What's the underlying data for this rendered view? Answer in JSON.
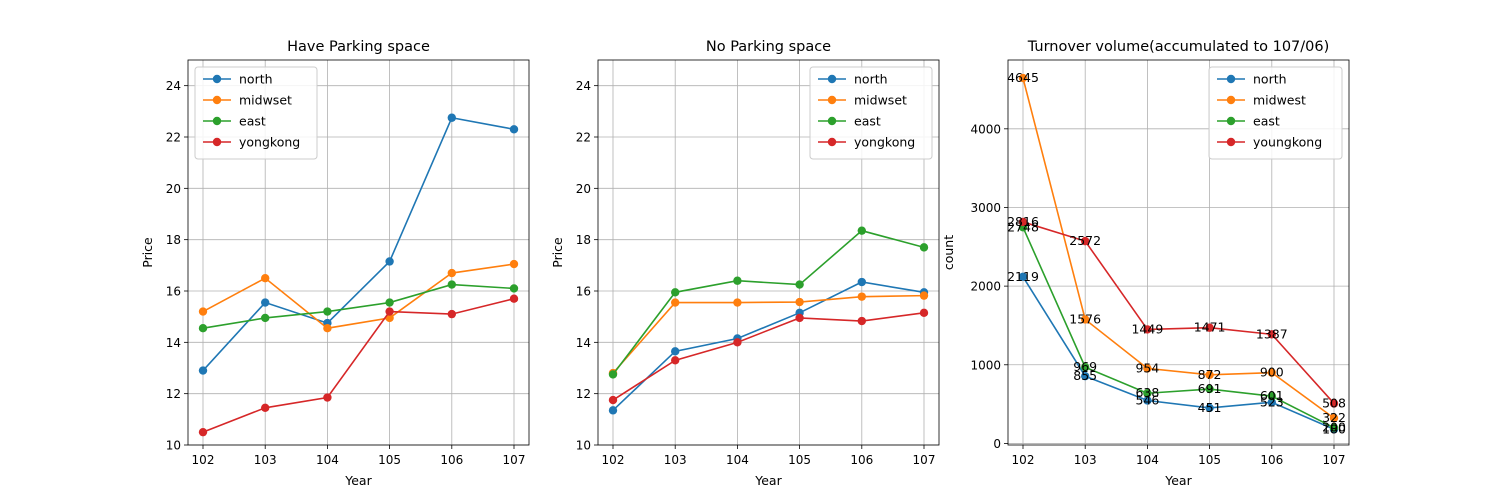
{
  "chart_data": [
    {
      "type": "line",
      "title": "Have Parking space",
      "xlabel": "Year",
      "ylabel": "Price",
      "x": [
        "102",
        "103",
        "104",
        "105",
        "106",
        "107"
      ],
      "ylim": [
        10,
        25
      ],
      "yticks": [
        10,
        12,
        14,
        16,
        18,
        20,
        22,
        24
      ],
      "grid": true,
      "legend_position": "top-left",
      "series": [
        {
          "name": "north",
          "color": "#1f77b4",
          "values": [
            12.9,
            15.55,
            14.75,
            17.15,
            22.75,
            22.3
          ]
        },
        {
          "name": "midwset",
          "color": "#ff7f0e",
          "values": [
            15.2,
            16.5,
            14.55,
            14.95,
            16.7,
            17.05
          ]
        },
        {
          "name": "east",
          "color": "#2ca02c",
          "values": [
            14.55,
            14.95,
            15.2,
            15.55,
            16.25,
            16.1
          ]
        },
        {
          "name": "yongkong",
          "color": "#d62728",
          "values": [
            10.5,
            11.45,
            11.85,
            15.2,
            15.1,
            15.7
          ]
        }
      ]
    },
    {
      "type": "line",
      "title": "No Parking space",
      "xlabel": "Year",
      "ylabel": "Price",
      "x": [
        "102",
        "103",
        "104",
        "105",
        "106",
        "107"
      ],
      "ylim": [
        10,
        25
      ],
      "yticks": [
        10,
        12,
        14,
        16,
        18,
        20,
        22,
        24
      ],
      "grid": true,
      "legend_position": "top-right",
      "series": [
        {
          "name": "north",
          "color": "#1f77b4",
          "values": [
            11.35,
            13.65,
            14.15,
            15.15,
            16.35,
            15.95
          ]
        },
        {
          "name": "midwset",
          "color": "#ff7f0e",
          "values": [
            12.8,
            15.55,
            15.55,
            15.57,
            15.78,
            15.82
          ]
        },
        {
          "name": "east",
          "color": "#2ca02c",
          "values": [
            12.75,
            15.95,
            16.4,
            16.25,
            18.35,
            17.7
          ]
        },
        {
          "name": "yongkong",
          "color": "#d62728",
          "values": [
            11.75,
            13.3,
            14.0,
            14.95,
            14.83,
            15.15
          ]
        }
      ]
    },
    {
      "type": "line",
      "title": "Turnover volume(accumulated to 107/06)",
      "xlabel": "Year",
      "ylabel": "count",
      "x": [
        "102",
        "103",
        "104",
        "105",
        "106",
        "107"
      ],
      "ylim": [
        -20,
        4875
      ],
      "yticks": [
        0,
        1000,
        2000,
        3000,
        4000
      ],
      "grid": true,
      "legend_position": "top-right",
      "data_labels": true,
      "series": [
        {
          "name": "north",
          "color": "#1f77b4",
          "values": [
            2119,
            855,
            546,
            451,
            523,
            180
          ],
          "labels": [
            "2119",
            "855",
            "546",
            "451",
            "523",
            "180"
          ]
        },
        {
          "name": "midwest",
          "color": "#ff7f0e",
          "values": [
            4645,
            1576,
            954,
            872,
            900,
            322
          ],
          "labels": [
            "4645",
            "1576",
            "954",
            "872",
            "900",
            "322"
          ]
        },
        {
          "name": "east",
          "color": "#2ca02c",
          "values": [
            2748,
            969,
            638,
            691,
            601,
            200
          ],
          "labels": [
            "2748",
            "969",
            "638",
            "691",
            "601",
            "200"
          ]
        },
        {
          "name": "youngkong",
          "color": "#d62728",
          "values": [
            2816,
            2572,
            1449,
            1471,
            1387,
            508
          ],
          "labels": [
            "2816",
            "2572",
            "1449",
            "1471",
            "1387",
            "508"
          ]
        }
      ]
    }
  ]
}
